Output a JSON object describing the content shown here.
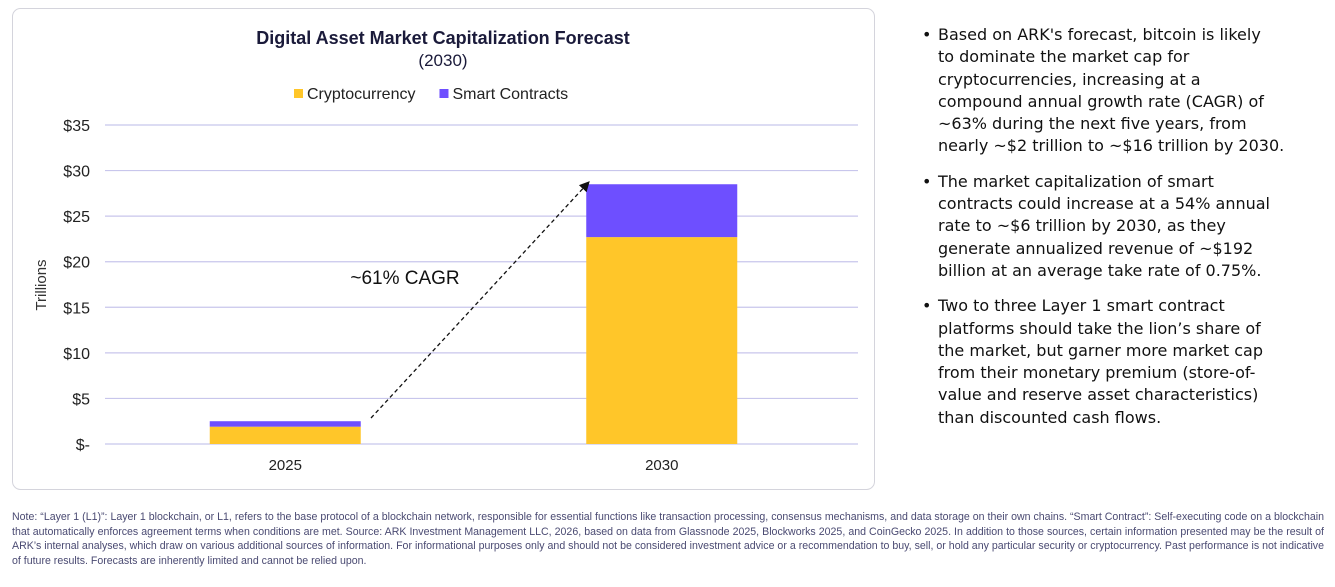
{
  "chart_data": {
    "type": "bar",
    "stacked": true,
    "title": "Digital Asset Market Capitalization Forecast",
    "subtitle": "(2030)",
    "ylabel": "Trillions",
    "xlabel": "",
    "categories": [
      "2025",
      "2030"
    ],
    "series": [
      {
        "name": "Cryptocurrency",
        "color": "#FFC629",
        "values": [
          1.9,
          22.7
        ]
      },
      {
        "name": "Smart Contracts",
        "color": "#6E4FFF",
        "values": [
          0.6,
          5.8
        ]
      }
    ],
    "ylim": [
      0,
      35
    ],
    "yticks": [
      0,
      5,
      10,
      15,
      20,
      25,
      30,
      35
    ],
    "ytick_labels": [
      "$-",
      "$5",
      "$10",
      "$15",
      "$20",
      "$25",
      "$30",
      "$35"
    ],
    "grid": true,
    "legend": "top-center",
    "annotation": "~61% CAGR"
  },
  "bullets": [
    "Based on ARK's forecast, bitcoin is likely\nto dominate the market cap for\ncryptocurrencies, increasing at a\ncompound annual growth rate (CAGR) of\n~63% during the next five years, from\nnearly ~$2 trillion to ~$16 trillion by 2030.",
    "The market capitalization of smart\ncontracts could increase at a 54% annual\nrate to ~$6 trillion by 2030, as they\ngenerate annualized revenue of ~$192\nbillion at an average take rate of 0.75%.",
    "Two to three Layer 1 smart contract\nplatforms should take the lion’s share of\nthe market, but garner more market cap\nfrom their monetary premium (store-of-\nvalue and reserve asset characteristics)\nthan discounted cash flows."
  ],
  "note": "Note: “Layer 1 (L1)”: Layer 1 blockchain, or L1, refers to the base protocol of a blockchain network, responsible for essential functions like transaction processing, consensus mechanisms, and data storage on their own chains. “Smart Contract”: Self-executing code on a blockchain that automatically enforces agreement terms when conditions are met. Source: ARK Investment Management LLC, 2026, based on data from Glassnode 2025, Blockworks 2025, and CoinGecko 2025. In addition to those sources, certain information presented may be the result of ARK’s internal analyses, which draw on various additional sources of information. For informational purposes only and should not be considered investment advice or a recommendation to buy, sell, or hold any particular security or cryptocurrency. Past performance is not indicative of future results. Forecasts are inherently limited and cannot be relied upon."
}
